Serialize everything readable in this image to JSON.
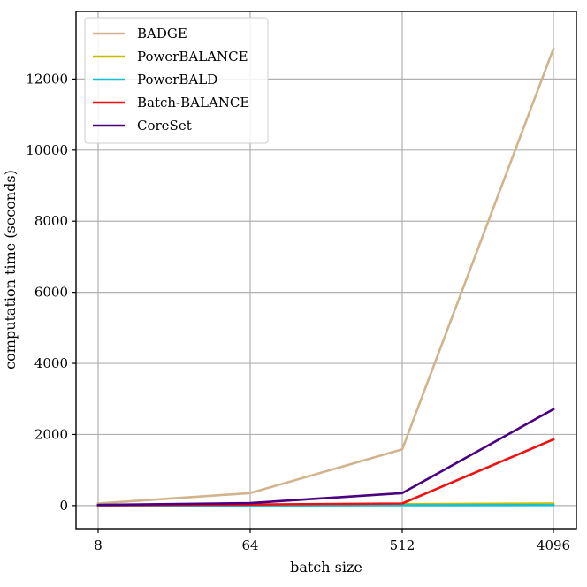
{
  "chart_data": {
    "type": "line",
    "xlabel": "batch size",
    "ylabel": "computation time (seconds)",
    "x_scale": "log2",
    "x": [
      8,
      64,
      512,
      4096
    ],
    "x_tick_labels": [
      "8",
      "64",
      "512",
      "4096"
    ],
    "y_ticks": [
      0,
      2000,
      4000,
      6000,
      8000,
      10000,
      12000
    ],
    "y_tick_labels": [
      "0",
      "2000",
      "4000",
      "6000",
      "8000",
      "10000",
      "12000"
    ],
    "ylim": [
      -650,
      13900
    ],
    "grid": true,
    "legend_position": "top-left",
    "series": [
      {
        "name": "BADGE",
        "color": "#d2b48c",
        "values": [
          60,
          350,
          1580,
          12850
        ]
      },
      {
        "name": "PowerBALANCE",
        "color": "#bfbf00",
        "values": [
          5,
          15,
          40,
          60
        ]
      },
      {
        "name": "PowerBALD",
        "color": "#17becf",
        "values": [
          2,
          5,
          10,
          15
        ]
      },
      {
        "name": "Batch-BALANCE",
        "color": "#ee1111",
        "values": [
          10,
          30,
          60,
          1860
        ]
      },
      {
        "name": "CoreSet",
        "color": "#4b0082",
        "values": [
          20,
          70,
          350,
          2710
        ]
      }
    ]
  }
}
